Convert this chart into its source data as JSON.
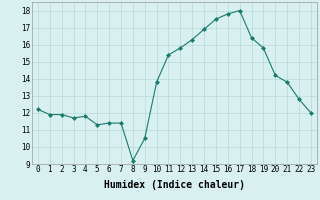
{
  "x": [
    0,
    1,
    2,
    3,
    4,
    5,
    6,
    7,
    8,
    9,
    10,
    11,
    12,
    13,
    14,
    15,
    16,
    17,
    18,
    19,
    20,
    21,
    22,
    23
  ],
  "y": [
    12.2,
    11.9,
    11.9,
    11.7,
    11.8,
    11.3,
    11.4,
    11.4,
    9.2,
    10.5,
    13.8,
    15.4,
    15.8,
    16.3,
    16.9,
    17.5,
    17.8,
    18.0,
    16.4,
    15.8,
    14.2,
    13.8,
    12.8,
    12.0
  ],
  "line_color": "#1a7a6e",
  "marker": "D",
  "marker_size": 2.0,
  "bg_color": "#d8f0f0",
  "grid_color": "#b8d8d8",
  "xlabel": "Humidex (Indice chaleur)",
  "xlim": [
    -0.5,
    23.5
  ],
  "ylim": [
    9,
    18.5
  ],
  "yticks": [
    9,
    10,
    11,
    12,
    13,
    14,
    15,
    16,
    17,
    18
  ],
  "xticks": [
    0,
    1,
    2,
    3,
    4,
    5,
    6,
    7,
    8,
    9,
    10,
    11,
    12,
    13,
    14,
    15,
    16,
    17,
    18,
    19,
    20,
    21,
    22,
    23
  ],
  "tick_fontsize": 5.5,
  "xlabel_fontsize": 7
}
